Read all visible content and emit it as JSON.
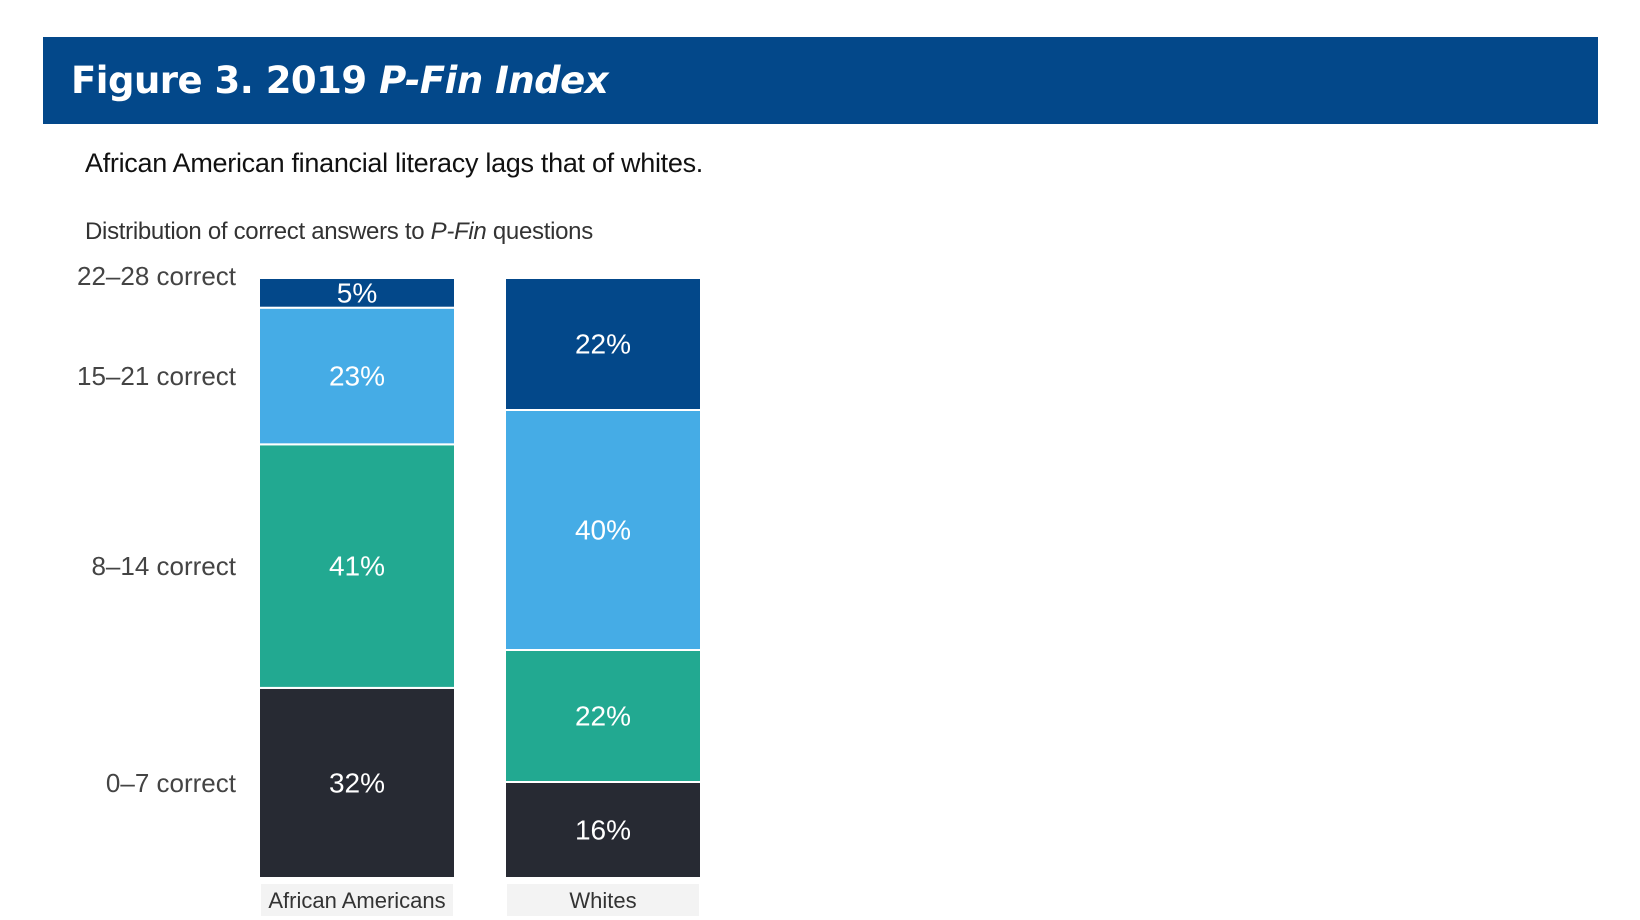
{
  "figure": {
    "label": "Figure 3. 2019 ",
    "label_italic": "P-Fin Index",
    "subtitle": "African American financial literacy lags that of whites.",
    "caption_prefix": "Distribution of correct answers to ",
    "caption_italic": "P-Fin",
    "caption_suffix": " questions"
  },
  "colors": {
    "banner": "#03488a",
    "segment_22_28": "#03488a",
    "segment_15_21": "#45ace6",
    "segment_8_14": "#22a991",
    "segment_0_7": "#272a33"
  },
  "chart_data": {
    "type": "bar",
    "stacked": true,
    "normalized": true,
    "categories": [
      "African Americans",
      "Whites"
    ],
    "series": [
      {
        "name": "0–7 correct",
        "values": [
          32,
          16
        ],
        "color": "#272a33"
      },
      {
        "name": "8–14 correct",
        "values": [
          41,
          22
        ],
        "color": "#22a991"
      },
      {
        "name": "15–21 correct",
        "values": [
          23,
          40
        ],
        "color": "#45ace6"
      },
      {
        "name": "22–28 correct",
        "values": [
          5,
          22
        ],
        "color": "#03488a"
      }
    ],
    "data_labels": [
      [
        "32%",
        "41%",
        "23%",
        "5%"
      ],
      [
        "16%",
        "22%",
        "40%",
        "22%"
      ]
    ],
    "ylim": [
      0,
      100
    ],
    "legend": "left",
    "grid": false
  }
}
